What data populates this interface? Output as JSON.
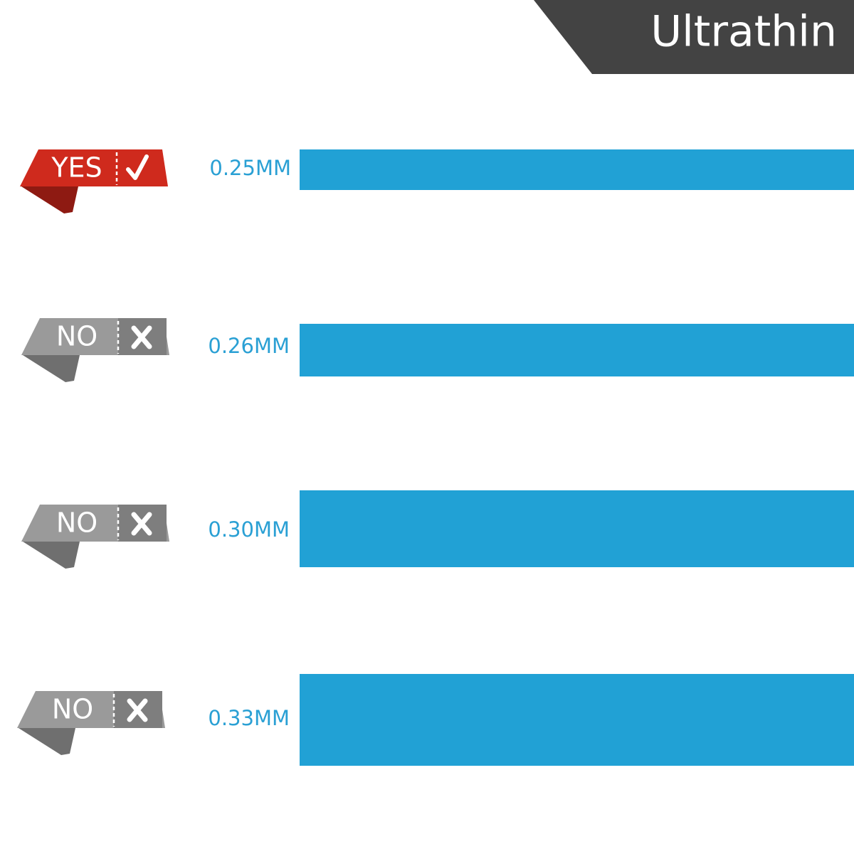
{
  "header": {
    "title": "Ultrathin"
  },
  "rows": [
    {
      "badge": "YES",
      "label": "0.25MM"
    },
    {
      "badge": "NO",
      "label": "0.26MM"
    },
    {
      "badge": "NO",
      "label": "0.30MM"
    },
    {
      "badge": "NO",
      "label": "0.33MM"
    }
  ]
}
